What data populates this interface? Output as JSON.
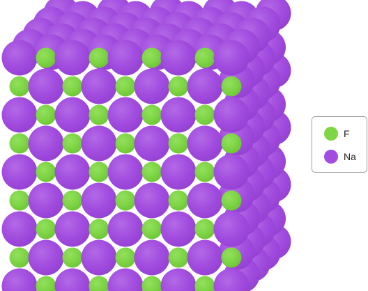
{
  "colors": {
    "fluoride": "#7ed545",
    "sodium": "#a24ddf",
    "outline": "#5f5f5f"
  },
  "legend": {
    "items": [
      {
        "label": "F",
        "color": "#7ed545"
      },
      {
        "label": "Na",
        "color": "#a24ddf"
      }
    ]
  }
}
